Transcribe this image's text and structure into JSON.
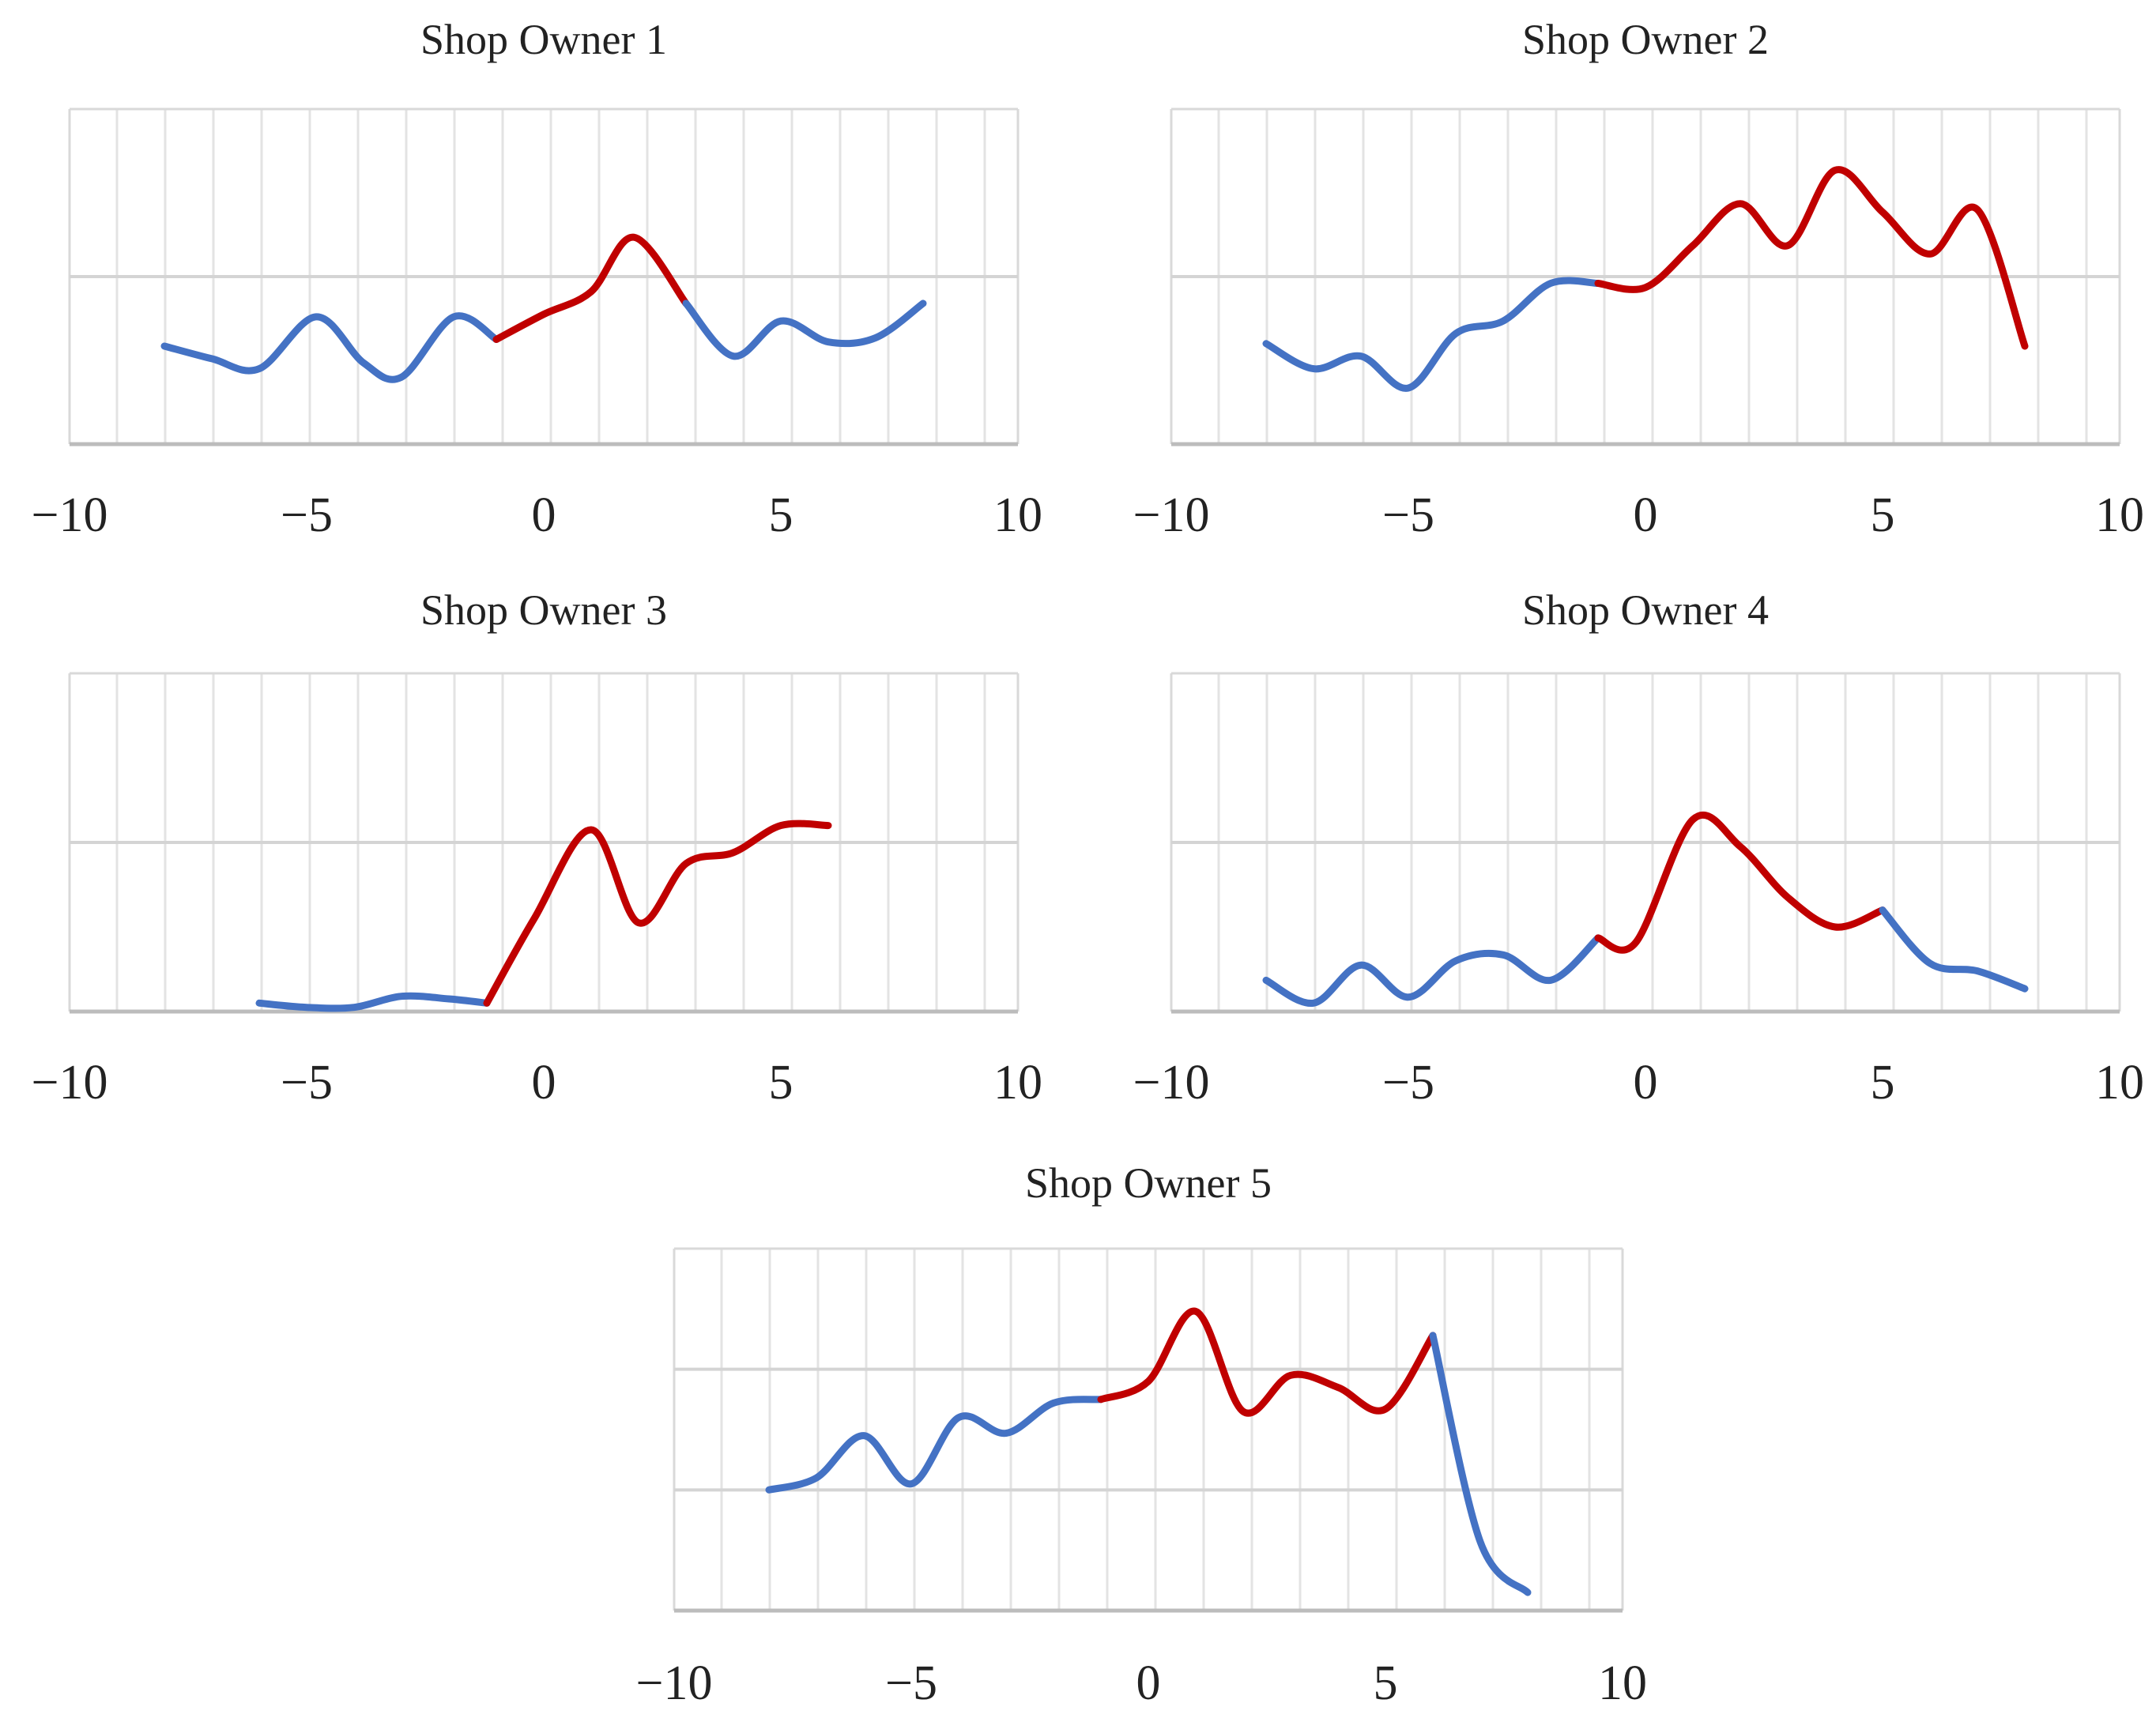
{
  "figure_title": "",
  "colors": {
    "blue": "#4472C4",
    "red": "#C00000",
    "grid": "#e3e3e3",
    "axis": "#bcbcbc",
    "text": "#222222"
  },
  "chart_data": [
    {
      "type": "line",
      "title": "Shop Owner 1",
      "xlim": [
        -10,
        10
      ],
      "ylim": [
        0,
        4
      ],
      "xticks": [
        -10,
        -5,
        0,
        5,
        10
      ],
      "xtick_labels": [
        "−10",
        "−5",
        "0",
        "5",
        "10"
      ],
      "hgrid": [
        2
      ],
      "xlabel": "",
      "ylabel": "",
      "series": [
        {
          "name": "blue",
          "color": "#4472C4",
          "points": [
            [
              -8,
              1.17
            ],
            [
              -7,
              1.02
            ],
            [
              -6,
              0.9
            ],
            [
              -4.8,
              1.52
            ],
            [
              -3.8,
              0.97
            ],
            [
              -3,
              0.8
            ],
            [
              -1.9,
              1.52
            ],
            [
              -1,
              1.25
            ]
          ]
        },
        {
          "name": "red",
          "color": "#C00000",
          "points": [
            [
              -1,
              1.25
            ],
            [
              0,
              1.55
            ],
            [
              1,
              1.82
            ],
            [
              1.9,
              2.47
            ],
            [
              3,
              1.68
            ]
          ]
        },
        {
          "name": "blue",
          "color": "#4472C4",
          "points": [
            [
              3,
              1.68
            ],
            [
              4,
              1.05
            ],
            [
              5,
              1.47
            ],
            [
              6,
              1.22
            ],
            [
              7,
              1.27
            ],
            [
              8,
              1.68
            ]
          ]
        }
      ]
    },
    {
      "type": "line",
      "title": "Shop Owner 2",
      "xlim": [
        -10,
        10
      ],
      "ylim": [
        0,
        4
      ],
      "xticks": [
        -10,
        -5,
        0,
        5,
        10
      ],
      "xtick_labels": [
        "−10",
        "−5",
        "0",
        "5",
        "10"
      ],
      "hgrid": [
        2
      ],
      "xlabel": "",
      "ylabel": "",
      "series": [
        {
          "name": "blue",
          "color": "#4472C4",
          "points": [
            [
              -8,
              1.2
            ],
            [
              -7,
              0.9
            ],
            [
              -6,
              1.05
            ],
            [
              -5,
              0.67
            ],
            [
              -4,
              1.32
            ],
            [
              -3,
              1.47
            ],
            [
              -2,
              1.92
            ],
            [
              -1,
              1.92
            ]
          ]
        },
        {
          "name": "red",
          "color": "#C00000",
          "points": [
            [
              -1,
              1.92
            ],
            [
              0,
              1.87
            ],
            [
              1,
              2.37
            ],
            [
              2,
              2.87
            ],
            [
              3,
              2.37
            ],
            [
              4,
              3.27
            ],
            [
              5,
              2.77
            ],
            [
              6,
              2.27
            ],
            [
              7,
              2.8
            ],
            [
              8,
              1.17
            ]
          ]
        }
      ]
    },
    {
      "type": "line",
      "title": "Shop Owner  3",
      "xlim": [
        -10,
        10
      ],
      "ylim": [
        0,
        4
      ],
      "xticks": [
        -10,
        -5,
        0,
        5,
        10
      ],
      "xtick_labels": [
        "−10",
        "−5",
        "0",
        "5",
        "10"
      ],
      "hgrid": [
        2
      ],
      "xlabel": "",
      "ylabel": "",
      "series": [
        {
          "name": "blue",
          "color": "#4472C4",
          "points": [
            [
              -6,
              0.1
            ],
            [
              -5,
              0.05
            ],
            [
              -4,
              0.05
            ],
            [
              -3,
              0.18
            ],
            [
              -2,
              0.15
            ],
            [
              -1.2,
              0.1
            ]
          ]
        },
        {
          "name": "red",
          "color": "#C00000",
          "points": [
            [
              -1.2,
              0.1
            ],
            [
              -0.2,
              1.1
            ],
            [
              1,
              2.15
            ],
            [
              2,
              1.05
            ],
            [
              3,
              1.75
            ],
            [
              4,
              1.88
            ],
            [
              5,
              2.2
            ],
            [
              6,
              2.2
            ]
          ]
        }
      ]
    },
    {
      "type": "line",
      "title": "Shop Owner 4",
      "xlim": [
        -10,
        10
      ],
      "ylim": [
        0,
        4
      ],
      "xticks": [
        -10,
        -5,
        0,
        5,
        10
      ],
      "xtick_labels": [
        "−10",
        "−5",
        "0",
        "5",
        "10"
      ],
      "hgrid": [
        2
      ],
      "xlabel": "",
      "ylabel": "",
      "series": [
        {
          "name": "blue",
          "color": "#4472C4",
          "points": [
            [
              -8,
              0.37
            ],
            [
              -7,
              0.1
            ],
            [
              -6,
              0.55
            ],
            [
              -5,
              0.17
            ],
            [
              -4,
              0.6
            ],
            [
              -3,
              0.67
            ],
            [
              -2,
              0.37
            ],
            [
              -1,
              0.87
            ]
          ]
        },
        {
          "name": "red",
          "color": "#C00000",
          "points": [
            [
              -1,
              0.87
            ],
            [
              -0.2,
              0.82
            ],
            [
              1,
              2.27
            ],
            [
              2,
              1.95
            ],
            [
              3,
              1.35
            ],
            [
              4,
              1
            ],
            [
              5,
              1.2
            ]
          ]
        },
        {
          "name": "blue",
          "color": "#4472C4",
          "points": [
            [
              5,
              1.2
            ],
            [
              6,
              0.57
            ],
            [
              7,
              0.48
            ],
            [
              8,
              0.27
            ]
          ]
        }
      ]
    },
    {
      "type": "line",
      "title": "Shop Owner 5",
      "xlim": [
        -10,
        10
      ],
      "ylim": [
        0,
        3
      ],
      "xticks": [
        -10,
        -5,
        0,
        5,
        10
      ],
      "xtick_labels": [
        "−10",
        "−5",
        "0",
        "5",
        "10"
      ],
      "hgrid": [
        1,
        2
      ],
      "xlabel": "",
      "ylabel": "",
      "series": [
        {
          "name": "blue",
          "color": "#4472C4",
          "points": [
            [
              -8,
              1
            ],
            [
              -7,
              1.1
            ],
            [
              -6,
              1.45
            ],
            [
              -5,
              1.05
            ],
            [
              -4,
              1.6
            ],
            [
              -3,
              1.47
            ],
            [
              -2,
              1.72
            ],
            [
              -1,
              1.75
            ]
          ]
        },
        {
          "name": "red",
          "color": "#C00000",
          "points": [
            [
              -1,
              1.75
            ],
            [
              0,
              1.9
            ],
            [
              1,
              2.48
            ],
            [
              2,
              1.65
            ],
            [
              3,
              1.95
            ],
            [
              4,
              1.85
            ],
            [
              5,
              1.67
            ],
            [
              6,
              2.28
            ]
          ]
        },
        {
          "name": "blue",
          "color": "#4472C4",
          "points": [
            [
              6,
              2.28
            ],
            [
              7,
              0.57
            ],
            [
              8,
              0.15
            ]
          ]
        }
      ]
    }
  ]
}
